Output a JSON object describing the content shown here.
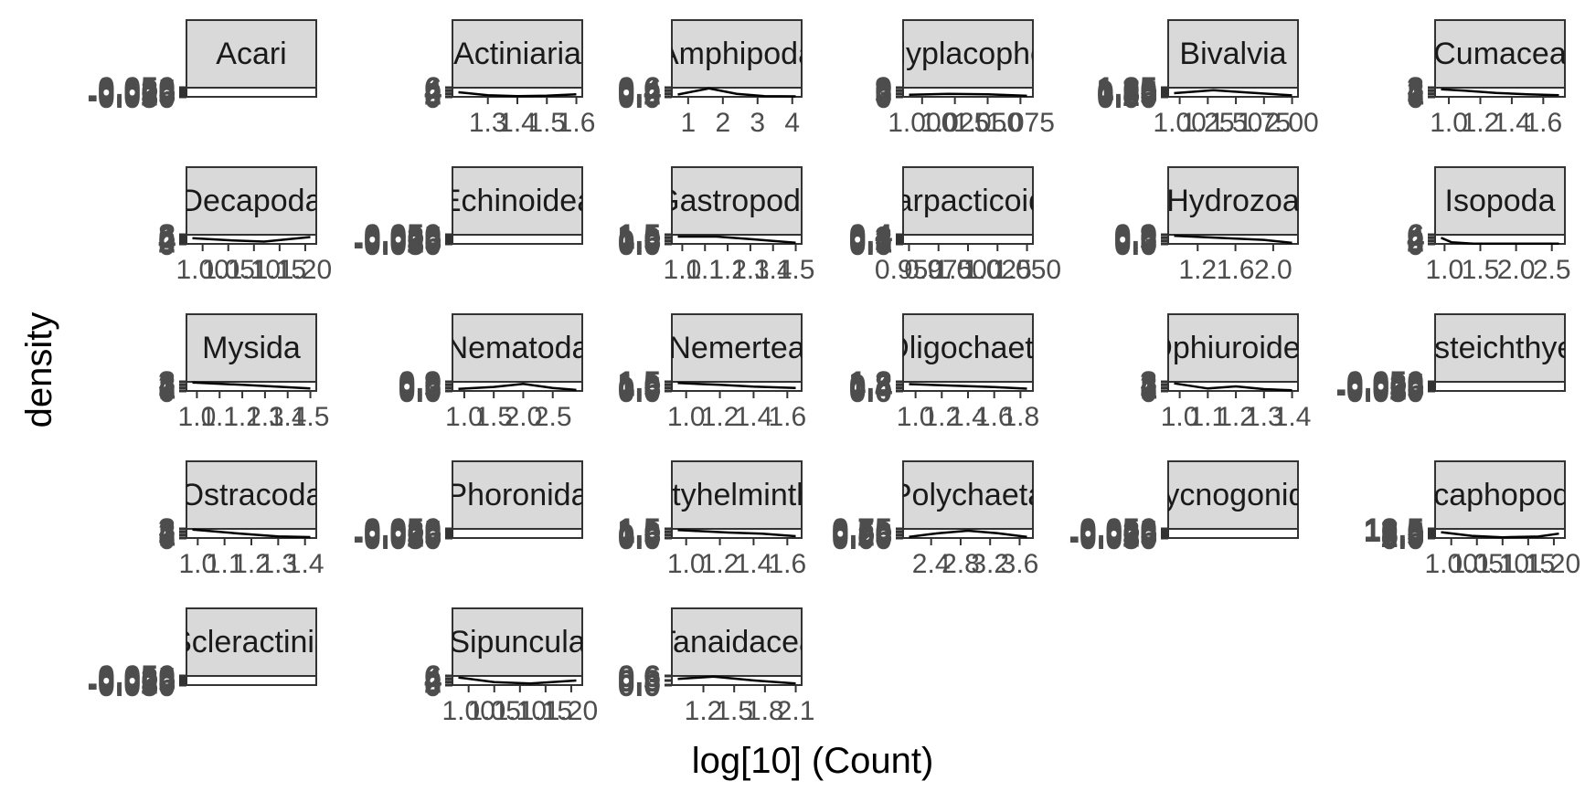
{
  "chart_data": {
    "type": "area",
    "xlabel": "log[10] (Count)",
    "ylabel": "density",
    "panels": [
      {
        "label": "Acari",
        "xticks": [],
        "yticks": [
          "-0.050",
          "-0.025",
          "0.000",
          "0.025",
          "0.050"
        ],
        "x": [],
        "y": [],
        "ylim": [
          -0.05,
          0.05
        ]
      },
      {
        "label": "Actiniaria",
        "xticks": [
          "1.3",
          "1.4",
          "1.5",
          "1.6"
        ],
        "yticks": [
          "0",
          "2",
          "4",
          "6"
        ],
        "x": [
          1.2,
          1.3,
          1.4,
          1.5,
          1.6
        ],
        "y": [
          3.0,
          1.0,
          0.5,
          0.8,
          1.6
        ],
        "ylim": [
          0,
          6
        ]
      },
      {
        "label": "Amphipoda",
        "xticks": [
          "1",
          "2",
          "3",
          "4"
        ],
        "yticks": [
          "0.0",
          "0.2",
          "0.4",
          "0.6"
        ],
        "x": [
          0.7,
          1.6,
          2.4,
          3.2,
          4.1
        ],
        "y": [
          0.15,
          0.55,
          0.2,
          0.05,
          0.03
        ],
        "ylim": [
          0,
          0.6
        ]
      },
      {
        "label": "Polyplacophora",
        "xticks": [
          "1.000",
          "1.025",
          "1.050",
          "1.075"
        ],
        "yticks": [
          "0",
          "3",
          "6",
          "9"
        ],
        "x": [
          0.99,
          1.02,
          1.05,
          1.08
        ],
        "y": [
          2,
          3,
          2.5,
          1
        ],
        "ylim": [
          0,
          9
        ]
      },
      {
        "label": "Bivalvia",
        "xticks": [
          "1.00",
          "1.25",
          "1.50",
          "1.75",
          "2.00"
        ],
        "yticks": [
          "0.00",
          "0.25",
          "0.50",
          "0.75",
          "1.00",
          "1.25"
        ],
        "x": [
          0.95,
          1.3,
          1.6,
          2.0
        ],
        "y": [
          0.5,
          0.9,
          0.6,
          0.2
        ],
        "ylim": [
          0,
          1.25
        ]
      },
      {
        "label": "Cumacea",
        "xticks": [
          "1.0",
          "1.2",
          "1.4",
          "1.6"
        ],
        "yticks": [
          "0",
          "1",
          "2",
          "3"
        ],
        "x": [
          0.95,
          1.1,
          1.3,
          1.5,
          1.7
        ],
        "y": [
          2.5,
          2.0,
          1.3,
          0.8,
          0.5
        ],
        "ylim": [
          0,
          3
        ]
      },
      {
        "label": "Decapoda",
        "xticks": [
          "1.00",
          "1.05",
          "1.10",
          "1.15",
          "1.20"
        ],
        "yticks": [
          "0",
          "2",
          "4",
          "6",
          "8"
        ],
        "x": [
          0.98,
          1.06,
          1.12,
          1.21
        ],
        "y": [
          5,
          3,
          2,
          6
        ],
        "ylim": [
          0,
          8
        ]
      },
      {
        "label": "Echinoidea",
        "xticks": [],
        "yticks": [
          "-0.050",
          "-0.025",
          "0.000",
          "0.025",
          "0.050"
        ],
        "x": [],
        "y": [],
        "ylim": [
          -0.05,
          0.05
        ]
      },
      {
        "label": "Gastropoda",
        "xticks": [
          "1.0",
          "1.1",
          "1.2",
          "1.3",
          "1.4",
          "1.5"
        ],
        "yticks": [
          "0.0",
          "0.5",
          "1.0",
          "1.5"
        ],
        "x": [
          0.98,
          1.15,
          1.3,
          1.5
        ],
        "y": [
          1.2,
          1.2,
          0.8,
          0.2
        ],
        "ylim": [
          0,
          1.5
        ]
      },
      {
        "label": "Harpacticoida",
        "xticks": [
          "0.950",
          "0.975",
          "1.000",
          "1.025",
          "1.050"
        ],
        "yticks": [
          "0.0",
          "0.1",
          "0.2",
          "0.3",
          "0.4"
        ],
        "x": [],
        "y": [],
        "ylim": [
          0,
          0.4
        ]
      },
      {
        "label": "Hydrozoa",
        "xticks": [
          "1.2",
          "1.6",
          "2.0"
        ],
        "yticks": [
          "0.0",
          "0.3",
          "0.6",
          "0.9"
        ],
        "x": [
          0.95,
          1.4,
          1.9,
          2.2
        ],
        "y": [
          0.8,
          0.6,
          0.4,
          0.1
        ],
        "ylim": [
          0,
          0.9
        ]
      },
      {
        "label": "Isopoda",
        "xticks": [
          "1.0",
          "1.5",
          "2.0",
          "2.5"
        ],
        "yticks": [
          "0",
          "2",
          "4",
          "6"
        ],
        "x": [
          0.95,
          1.1,
          1.4,
          2.6
        ],
        "y": [
          4,
          1,
          0.2,
          0.1
        ],
        "ylim": [
          0,
          6
        ]
      },
      {
        "label": "Mysida",
        "xticks": [
          "1.0",
          "1.1",
          "1.2",
          "1.3",
          "1.4",
          "1.5"
        ],
        "yticks": [
          "0",
          "1",
          "2",
          "3"
        ],
        "x": [
          0.98,
          1.2,
          1.5
        ],
        "y": [
          2.8,
          2.0,
          0.8
        ],
        "ylim": [
          0,
          3
        ]
      },
      {
        "label": "Nematoda",
        "xticks": [
          "1.0",
          "1.5",
          "2.0",
          "2.5"
        ],
        "yticks": [
          "0.0",
          "0.3",
          "0.6",
          "0.9"
        ],
        "x": [
          0.9,
          1.5,
          2.0,
          2.5,
          2.9
        ],
        "y": [
          0.2,
          0.4,
          0.7,
          0.3,
          0.1
        ],
        "ylim": [
          0,
          0.9
        ]
      },
      {
        "label": "Nemertea",
        "xticks": [
          "1.0",
          "1.2",
          "1.4",
          "1.6"
        ],
        "yticks": [
          "0.0",
          "0.5",
          "1.0",
          "1.5"
        ],
        "x": [
          0.95,
          1.2,
          1.4,
          1.65
        ],
        "y": [
          1.3,
          1.0,
          0.7,
          0.5
        ],
        "ylim": [
          0,
          1.5
        ]
      },
      {
        "label": "Oligochaeta",
        "xticks": [
          "1.0",
          "1.2",
          "1.4",
          "1.6",
          "1.8"
        ],
        "yticks": [
          "0.0",
          "0.4",
          "0.8",
          "1.2"
        ],
        "x": [
          0.95,
          1.3,
          1.6,
          1.85
        ],
        "y": [
          0.9,
          0.7,
          0.5,
          0.3
        ],
        "ylim": [
          0,
          1.2
        ]
      },
      {
        "label": "Ophiuroidea",
        "xticks": [
          "1.0",
          "1.1",
          "1.2",
          "1.3",
          "1.4"
        ],
        "yticks": [
          "0",
          "1",
          "2",
          "3"
        ],
        "x": [
          0.98,
          1.1,
          1.2,
          1.3,
          1.4
        ],
        "y": [
          2.5,
          0.8,
          1.5,
          0.6,
          0.2
        ],
        "ylim": [
          0,
          3
        ]
      },
      {
        "label": "Osteichthyes",
        "xticks": [],
        "yticks": [
          "-0.050",
          "-0.025",
          "0.000",
          "0.025",
          "0.050"
        ],
        "x": [],
        "y": [],
        "ylim": [
          -0.05,
          0.05
        ]
      },
      {
        "label": "Ostracoda",
        "xticks": [
          "1.0",
          "1.1",
          "1.2",
          "1.3",
          "1.4"
        ],
        "yticks": [
          "0",
          "1",
          "2",
          "3"
        ],
        "x": [
          0.98,
          1.15,
          1.3,
          1.42
        ],
        "y": [
          2.8,
          1.5,
          0.5,
          0.3
        ],
        "ylim": [
          0,
          3
        ]
      },
      {
        "label": "Phoronida",
        "xticks": [],
        "yticks": [
          "-0.050",
          "-0.025",
          "0.000",
          "0.025",
          "0.050"
        ],
        "x": [],
        "y": [],
        "ylim": [
          -0.05,
          0.05
        ]
      },
      {
        "label": "Platyhelminthes",
        "xticks": [
          "1.0",
          "1.2",
          "1.4",
          "1.6"
        ],
        "yticks": [
          "0.0",
          "0.5",
          "1.0",
          "1.5"
        ],
        "x": [
          0.95,
          1.25,
          1.45,
          1.65
        ],
        "y": [
          1.3,
          0.9,
          0.7,
          0.3
        ],
        "ylim": [
          0,
          1.5
        ]
      },
      {
        "label": "Polychaeta",
        "xticks": [
          "2.4",
          "2.8",
          "3.2",
          "3.6"
        ],
        "yticks": [
          "0.00",
          "0.25",
          "0.50",
          "0.75"
        ],
        "x": [
          2.1,
          2.5,
          2.9,
          3.3,
          3.7
        ],
        "y": [
          0.1,
          0.4,
          0.6,
          0.4,
          0.1
        ],
        "ylim": [
          0,
          0.75
        ]
      },
      {
        "label": "Pycnogonida",
        "xticks": [],
        "yticks": [
          "-0.050",
          "-0.025",
          "0.000",
          "0.025",
          "0.050"
        ],
        "x": [],
        "y": [],
        "ylim": [
          -0.05,
          0.05
        ]
      },
      {
        "label": "Scaphopoda",
        "xticks": [
          "1.00",
          "1.05",
          "1.10",
          "1.15",
          "1.20"
        ],
        "yticks": [
          "0.0",
          "2.5",
          "5.0",
          "7.5",
          "10.0",
          "12.5"
        ],
        "x": [
          0.98,
          1.04,
          1.1,
          1.17,
          1.21
        ],
        "y": [
          8,
          3,
          1,
          2,
          6
        ],
        "ylim": [
          0,
          12.5
        ]
      },
      {
        "label": "Scleractinia",
        "xticks": [],
        "yticks": [
          "-0.050",
          "-0.025",
          "0.000",
          "0.025",
          "0.050"
        ],
        "x": [],
        "y": [],
        "ylim": [
          -0.05,
          0.05
        ]
      },
      {
        "label": "Sipuncula",
        "xticks": [
          "1.00",
          "1.05",
          "1.10",
          "1.15",
          "1.20"
        ],
        "yticks": [
          "0",
          "2",
          "4",
          "6"
        ],
        "x": [
          0.98,
          1.05,
          1.12,
          1.21
        ],
        "y": [
          5,
          2,
          1,
          3
        ],
        "ylim": [
          0,
          6
        ]
      },
      {
        "label": "Tanaidacea",
        "xticks": [
          "1.2",
          "1.5",
          "1.8",
          "2.1"
        ],
        "yticks": [
          "0.0",
          "0.3",
          "0.6"
        ],
        "x": [
          0.95,
          1.3,
          1.7,
          2.1
        ],
        "y": [
          0.4,
          0.55,
          0.3,
          0.1
        ],
        "ylim": [
          0,
          0.6
        ]
      }
    ]
  }
}
